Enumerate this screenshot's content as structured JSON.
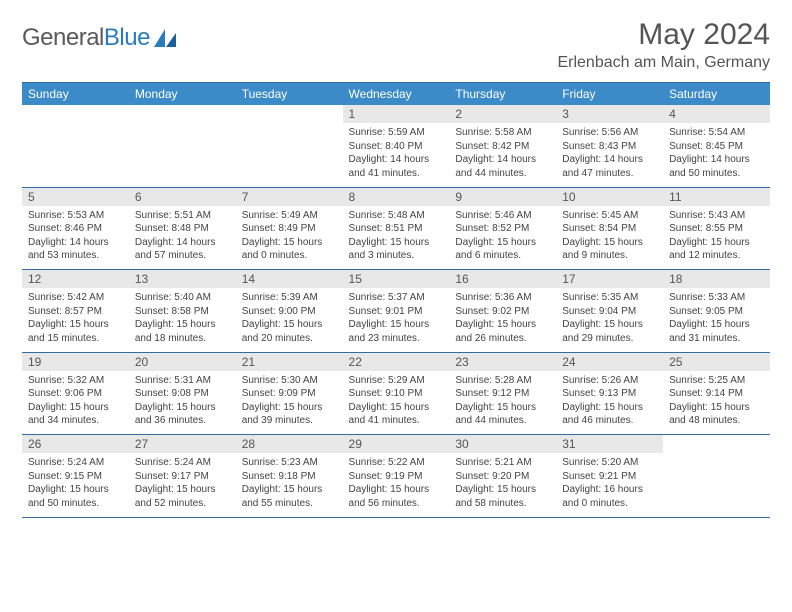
{
  "brand": {
    "part1": "General",
    "part2": "Blue"
  },
  "title": "May 2024",
  "location": "Erlenbach am Main, Germany",
  "colors": {
    "header_bg": "#3b8bc9",
    "header_text": "#ffffff",
    "daynum_bg": "#e8e8e8",
    "rule": "#2f6da3",
    "brand_gray": "#5a5a5a",
    "brand_blue": "#2b7bbf"
  },
  "day_headers": [
    "Sunday",
    "Monday",
    "Tuesday",
    "Wednesday",
    "Thursday",
    "Friday",
    "Saturday"
  ],
  "weeks": [
    {
      "nums": [
        "",
        "",
        "",
        "1",
        "2",
        "3",
        "4"
      ],
      "cells": [
        null,
        null,
        null,
        {
          "sunrise": "5:59 AM",
          "sunset": "8:40 PM",
          "daylight": "14 hours and 41 minutes."
        },
        {
          "sunrise": "5:58 AM",
          "sunset": "8:42 PM",
          "daylight": "14 hours and 44 minutes."
        },
        {
          "sunrise": "5:56 AM",
          "sunset": "8:43 PM",
          "daylight": "14 hours and 47 minutes."
        },
        {
          "sunrise": "5:54 AM",
          "sunset": "8:45 PM",
          "daylight": "14 hours and 50 minutes."
        }
      ]
    },
    {
      "nums": [
        "5",
        "6",
        "7",
        "8",
        "9",
        "10",
        "11"
      ],
      "cells": [
        {
          "sunrise": "5:53 AM",
          "sunset": "8:46 PM",
          "daylight": "14 hours and 53 minutes."
        },
        {
          "sunrise": "5:51 AM",
          "sunset": "8:48 PM",
          "daylight": "14 hours and 57 minutes."
        },
        {
          "sunrise": "5:49 AM",
          "sunset": "8:49 PM",
          "daylight": "15 hours and 0 minutes."
        },
        {
          "sunrise": "5:48 AM",
          "sunset": "8:51 PM",
          "daylight": "15 hours and 3 minutes."
        },
        {
          "sunrise": "5:46 AM",
          "sunset": "8:52 PM",
          "daylight": "15 hours and 6 minutes."
        },
        {
          "sunrise": "5:45 AM",
          "sunset": "8:54 PM",
          "daylight": "15 hours and 9 minutes."
        },
        {
          "sunrise": "5:43 AM",
          "sunset": "8:55 PM",
          "daylight": "15 hours and 12 minutes."
        }
      ]
    },
    {
      "nums": [
        "12",
        "13",
        "14",
        "15",
        "16",
        "17",
        "18"
      ],
      "cells": [
        {
          "sunrise": "5:42 AM",
          "sunset": "8:57 PM",
          "daylight": "15 hours and 15 minutes."
        },
        {
          "sunrise": "5:40 AM",
          "sunset": "8:58 PM",
          "daylight": "15 hours and 18 minutes."
        },
        {
          "sunrise": "5:39 AM",
          "sunset": "9:00 PM",
          "daylight": "15 hours and 20 minutes."
        },
        {
          "sunrise": "5:37 AM",
          "sunset": "9:01 PM",
          "daylight": "15 hours and 23 minutes."
        },
        {
          "sunrise": "5:36 AM",
          "sunset": "9:02 PM",
          "daylight": "15 hours and 26 minutes."
        },
        {
          "sunrise": "5:35 AM",
          "sunset": "9:04 PM",
          "daylight": "15 hours and 29 minutes."
        },
        {
          "sunrise": "5:33 AM",
          "sunset": "9:05 PM",
          "daylight": "15 hours and 31 minutes."
        }
      ]
    },
    {
      "nums": [
        "19",
        "20",
        "21",
        "22",
        "23",
        "24",
        "25"
      ],
      "cells": [
        {
          "sunrise": "5:32 AM",
          "sunset": "9:06 PM",
          "daylight": "15 hours and 34 minutes."
        },
        {
          "sunrise": "5:31 AM",
          "sunset": "9:08 PM",
          "daylight": "15 hours and 36 minutes."
        },
        {
          "sunrise": "5:30 AM",
          "sunset": "9:09 PM",
          "daylight": "15 hours and 39 minutes."
        },
        {
          "sunrise": "5:29 AM",
          "sunset": "9:10 PM",
          "daylight": "15 hours and 41 minutes."
        },
        {
          "sunrise": "5:28 AM",
          "sunset": "9:12 PM",
          "daylight": "15 hours and 44 minutes."
        },
        {
          "sunrise": "5:26 AM",
          "sunset": "9:13 PM",
          "daylight": "15 hours and 46 minutes."
        },
        {
          "sunrise": "5:25 AM",
          "sunset": "9:14 PM",
          "daylight": "15 hours and 48 minutes."
        }
      ]
    },
    {
      "nums": [
        "26",
        "27",
        "28",
        "29",
        "30",
        "31",
        ""
      ],
      "cells": [
        {
          "sunrise": "5:24 AM",
          "sunset": "9:15 PM",
          "daylight": "15 hours and 50 minutes."
        },
        {
          "sunrise": "5:24 AM",
          "sunset": "9:17 PM",
          "daylight": "15 hours and 52 minutes."
        },
        {
          "sunrise": "5:23 AM",
          "sunset": "9:18 PM",
          "daylight": "15 hours and 55 minutes."
        },
        {
          "sunrise": "5:22 AM",
          "sunset": "9:19 PM",
          "daylight": "15 hours and 56 minutes."
        },
        {
          "sunrise": "5:21 AM",
          "sunset": "9:20 PM",
          "daylight": "15 hours and 58 minutes."
        },
        {
          "sunrise": "5:20 AM",
          "sunset": "9:21 PM",
          "daylight": "16 hours and 0 minutes."
        },
        null
      ]
    }
  ],
  "labels": {
    "sunrise": "Sunrise: ",
    "sunset": "Sunset: ",
    "daylight": "Daylight: "
  }
}
